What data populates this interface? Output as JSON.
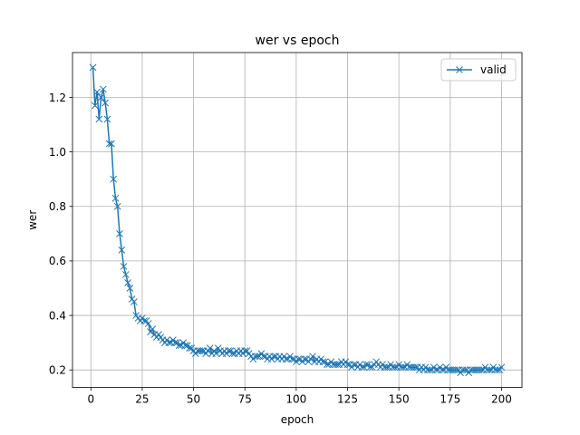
{
  "chart_data": {
    "type": "line",
    "title": "wer vs epoch",
    "xlabel": "epoch",
    "ylabel": "wer",
    "xlim": [
      -8.95,
      209.95
    ],
    "ylim": [
      0.1355,
      1.3645
    ],
    "xticks": [
      0,
      25,
      50,
      75,
      100,
      125,
      150,
      175,
      200
    ],
    "yticks": [
      0.2,
      0.4,
      0.6,
      0.8,
      1.0,
      1.2
    ],
    "ytick_labels": [
      "0.2",
      "0.4",
      "0.6",
      "0.8",
      "1.0",
      "1.2"
    ],
    "grid": true,
    "legend_position": "upper right",
    "series": [
      {
        "name": "valid",
        "color": "#1f77b4",
        "marker": "x",
        "x": [
          1,
          2,
          3,
          4,
          5,
          6,
          7,
          8,
          9,
          10,
          11,
          12,
          13,
          14,
          15,
          16,
          17,
          18,
          19,
          20,
          21,
          22,
          23,
          24,
          25,
          26,
          27,
          28,
          29,
          30,
          31,
          32,
          33,
          34,
          35,
          36,
          37,
          38,
          39,
          40,
          41,
          42,
          43,
          44,
          45,
          46,
          47,
          48,
          49,
          50,
          51,
          52,
          53,
          54,
          55,
          56,
          57,
          58,
          59,
          60,
          61,
          62,
          63,
          64,
          65,
          66,
          67,
          68,
          69,
          70,
          71,
          72,
          73,
          74,
          75,
          76,
          77,
          78,
          79,
          80,
          81,
          82,
          83,
          84,
          85,
          86,
          87,
          88,
          89,
          90,
          91,
          92,
          93,
          94,
          95,
          96,
          97,
          98,
          99,
          100,
          101,
          102,
          103,
          104,
          105,
          106,
          107,
          108,
          109,
          110,
          111,
          112,
          113,
          114,
          115,
          116,
          117,
          118,
          119,
          120,
          121,
          122,
          123,
          124,
          125,
          126,
          127,
          128,
          129,
          130,
          131,
          132,
          133,
          134,
          135,
          136,
          137,
          138,
          139,
          140,
          141,
          142,
          143,
          144,
          145,
          146,
          147,
          148,
          149,
          150,
          151,
          152,
          153,
          154,
          155,
          156,
          157,
          158,
          159,
          160,
          161,
          162,
          163,
          164,
          165,
          166,
          167,
          168,
          169,
          170,
          171,
          172,
          173,
          174,
          175,
          176,
          177,
          178,
          179,
          180,
          181,
          182,
          183,
          184,
          185,
          186,
          187,
          188,
          189,
          190,
          191,
          192,
          193,
          194,
          195,
          196,
          197,
          198,
          199,
          200
        ],
        "y": [
          1.31,
          1.17,
          1.22,
          1.12,
          1.2,
          1.23,
          1.18,
          1.12,
          1.03,
          1.03,
          0.9,
          0.83,
          0.8,
          0.7,
          0.64,
          0.58,
          0.55,
          0.52,
          0.5,
          0.46,
          0.45,
          0.4,
          0.39,
          0.38,
          0.39,
          0.38,
          0.38,
          0.37,
          0.34,
          0.35,
          0.33,
          0.32,
          0.33,
          0.32,
          0.31,
          0.3,
          0.31,
          0.3,
          0.3,
          0.31,
          0.3,
          0.3,
          0.29,
          0.29,
          0.3,
          0.29,
          0.29,
          0.28,
          0.28,
          0.27,
          0.26,
          0.27,
          0.27,
          0.27,
          0.27,
          0.26,
          0.27,
          0.28,
          0.26,
          0.27,
          0.26,
          0.28,
          0.27,
          0.26,
          0.27,
          0.26,
          0.27,
          0.27,
          0.26,
          0.26,
          0.27,
          0.26,
          0.27,
          0.26,
          0.27,
          0.27,
          0.26,
          0.25,
          0.24,
          0.25,
          0.25,
          0.25,
          0.26,
          0.25,
          0.25,
          0.24,
          0.25,
          0.24,
          0.25,
          0.25,
          0.24,
          0.25,
          0.24,
          0.25,
          0.24,
          0.24,
          0.25,
          0.24,
          0.24,
          0.23,
          0.24,
          0.24,
          0.23,
          0.24,
          0.24,
          0.23,
          0.24,
          0.25,
          0.23,
          0.24,
          0.23,
          0.24,
          0.23,
          0.23,
          0.22,
          0.22,
          0.23,
          0.22,
          0.22,
          0.22,
          0.22,
          0.23,
          0.22,
          0.23,
          0.22,
          0.22,
          0.21,
          0.22,
          0.22,
          0.21,
          0.22,
          0.21,
          0.21,
          0.22,
          0.22,
          0.21,
          0.21,
          0.22,
          0.23,
          0.22,
          0.21,
          0.22,
          0.21,
          0.21,
          0.21,
          0.22,
          0.21,
          0.21,
          0.21,
          0.22,
          0.21,
          0.21,
          0.21,
          0.22,
          0.21,
          0.21,
          0.21,
          0.21,
          0.21,
          0.2,
          0.21,
          0.2,
          0.21,
          0.2,
          0.2,
          0.2,
          0.21,
          0.2,
          0.2,
          0.21,
          0.2,
          0.2,
          0.21,
          0.2,
          0.2,
          0.2,
          0.2,
          0.2,
          0.2,
          0.19,
          0.2,
          0.2,
          0.2,
          0.19,
          0.2,
          0.2,
          0.2,
          0.2,
          0.2,
          0.2,
          0.2,
          0.21,
          0.2,
          0.2,
          0.2,
          0.21,
          0.2,
          0.2,
          0.2,
          0.21
        ]
      }
    ]
  }
}
